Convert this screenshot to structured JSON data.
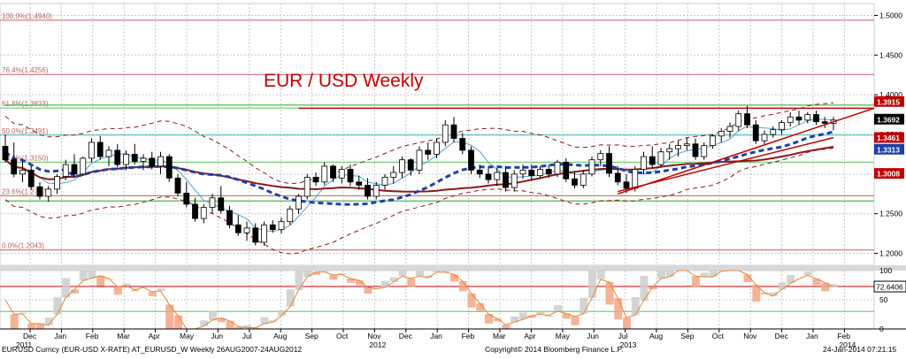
{
  "chart_data": {
    "type": "candlestick",
    "title": "EUR / USD Weekly",
    "footer": {
      "left": "EURUSD Curncy (EUR-USD X-RATE) AT_EURUSD_W  Weekly 26AUG2007-24AUG2012",
      "center": "Copyright© 2014 Bloomberg Finance L.P.",
      "right": "24-Jan-2014 07:21:15"
    },
    "y_axis": {
      "ticks": [
        "1.5000",
        "1.4500",
        "1.4000",
        "1.3500",
        "1.3000",
        "1.2500",
        "1.2000"
      ],
      "tick_values": [
        1.5,
        1.45,
        1.4,
        1.35,
        1.3,
        1.25,
        1.2
      ],
      "ylim": [
        1.185,
        1.515
      ]
    },
    "x_axis": {
      "months": [
        "Dec",
        "Jan",
        "Feb",
        "Mar",
        "Apr",
        "May",
        "Jun",
        "Jul",
        "Aug",
        "Sep",
        "Oct",
        "Nov",
        "Dec",
        "Jan",
        "Feb",
        "Mar",
        "Apr",
        "May",
        "Jun",
        "Jul",
        "Aug",
        "Sep",
        "Oct",
        "Nov",
        "Dec",
        "Jan",
        "Feb"
      ],
      "years": [
        "2011",
        "2012",
        "2013",
        "2014"
      ]
    },
    "fib_levels": [
      {
        "label": "100.0%(1.4940)",
        "value": 1.494
      },
      {
        "label": "76.4%(1.4256)",
        "value": 1.4256
      },
      {
        "label": "61.8%(1.3833)",
        "value": 1.3833
      },
      {
        "label": "50.0%(1.3491)",
        "value": 1.3491
      },
      {
        "label": "38.2%(1.3150)",
        "value": 1.315
      },
      {
        "label": "23.6%(1.2727)",
        "value": 1.2727
      },
      {
        "label": "0.0%(1.2043)",
        "value": 1.2043
      }
    ],
    "price_labels": [
      {
        "text": "1.3915",
        "value": 1.3915,
        "color": "#c00000"
      },
      {
        "text": "1.3692",
        "value": 1.3692,
        "color": "#000000"
      },
      {
        "text": "1.3461",
        "value": 1.3461,
        "color": "#c00000"
      },
      {
        "text": "1.3313",
        "value": 1.3313,
        "color": "#1f3fa8"
      },
      {
        "text": "1.3008",
        "value": 1.3008,
        "color": "#c00000"
      }
    ],
    "horizontal_lines": [
      {
        "value": 1.383,
        "color": "#c00000",
        "from_index": 34
      },
      {
        "value": 1.387,
        "color": "#5fbf5f",
        "from_index": 0
      },
      {
        "value": 1.266,
        "color": "#5fbf5f",
        "from_index": 0
      }
    ],
    "candles_ohlc": [
      [
        1.335,
        1.35,
        1.315,
        1.318
      ],
      [
        1.318,
        1.34,
        1.296,
        1.3
      ],
      [
        1.3,
        1.316,
        1.29,
        1.305
      ],
      [
        1.305,
        1.31,
        1.28,
        1.284
      ],
      [
        1.284,
        1.29,
        1.268,
        1.272
      ],
      [
        1.272,
        1.285,
        1.265,
        1.281
      ],
      [
        1.281,
        1.3,
        1.275,
        1.297
      ],
      [
        1.297,
        1.318,
        1.292,
        1.312
      ],
      [
        1.312,
        1.325,
        1.295,
        1.3
      ],
      [
        1.3,
        1.322,
        1.298,
        1.32
      ],
      [
        1.32,
        1.345,
        1.315,
        1.34
      ],
      [
        1.34,
        1.348,
        1.318,
        1.322
      ],
      [
        1.322,
        1.335,
        1.31,
        1.33
      ],
      [
        1.33,
        1.338,
        1.308,
        1.312
      ],
      [
        1.312,
        1.33,
        1.305,
        1.325
      ],
      [
        1.325,
        1.338,
        1.312,
        1.316
      ],
      [
        1.316,
        1.325,
        1.305,
        1.32
      ],
      [
        1.32,
        1.328,
        1.306,
        1.31
      ],
      [
        1.31,
        1.328,
        1.3,
        1.322
      ],
      [
        1.322,
        1.325,
        1.29,
        1.295
      ],
      [
        1.295,
        1.3,
        1.272,
        1.276
      ],
      [
        1.276,
        1.29,
        1.258,
        1.262
      ],
      [
        1.262,
        1.27,
        1.24,
        1.244
      ],
      [
        1.244,
        1.262,
        1.238,
        1.258
      ],
      [
        1.258,
        1.275,
        1.25,
        1.27
      ],
      [
        1.27,
        1.285,
        1.25,
        1.254
      ],
      [
        1.254,
        1.26,
        1.232,
        1.236
      ],
      [
        1.236,
        1.248,
        1.222,
        1.226
      ],
      [
        1.226,
        1.24,
        1.216,
        1.232
      ],
      [
        1.232,
        1.238,
        1.21,
        1.214
      ],
      [
        1.214,
        1.24,
        1.21,
        1.236
      ],
      [
        1.236,
        1.242,
        1.226,
        1.23
      ],
      [
        1.23,
        1.245,
        1.225,
        1.24
      ],
      [
        1.24,
        1.26,
        1.236,
        1.256
      ],
      [
        1.256,
        1.275,
        1.25,
        1.272
      ],
      [
        1.272,
        1.3,
        1.268,
        1.296
      ],
      [
        1.296,
        1.302,
        1.285,
        1.29
      ],
      [
        1.29,
        1.315,
        1.286,
        1.31
      ],
      [
        1.31,
        1.312,
        1.29,
        1.295
      ],
      [
        1.295,
        1.31,
        1.288,
        1.306
      ],
      [
        1.306,
        1.312,
        1.285,
        1.29
      ],
      [
        1.29,
        1.298,
        1.28,
        1.286
      ],
      [
        1.286,
        1.295,
        1.268,
        1.272
      ],
      [
        1.272,
        1.29,
        1.268,
        1.286
      ],
      [
        1.286,
        1.3,
        1.28,
        1.296
      ],
      [
        1.296,
        1.31,
        1.288,
        1.302
      ],
      [
        1.302,
        1.322,
        1.295,
        1.318
      ],
      [
        1.318,
        1.32,
        1.298,
        1.305
      ],
      [
        1.305,
        1.335,
        1.3,
        1.33
      ],
      [
        1.33,
        1.34,
        1.318,
        1.325
      ],
      [
        1.325,
        1.345,
        1.32,
        1.34
      ],
      [
        1.34,
        1.368,
        1.335,
        1.362
      ],
      [
        1.362,
        1.372,
        1.34,
        1.345
      ],
      [
        1.345,
        1.352,
        1.325,
        1.33
      ],
      [
        1.33,
        1.335,
        1.3,
        1.305
      ],
      [
        1.305,
        1.312,
        1.295,
        1.3
      ],
      [
        1.3,
        1.308,
        1.288,
        1.293
      ],
      [
        1.293,
        1.308,
        1.285,
        1.302
      ],
      [
        1.302,
        1.31,
        1.278,
        1.283
      ],
      [
        1.283,
        1.305,
        1.278,
        1.3
      ],
      [
        1.3,
        1.312,
        1.294,
        1.305
      ],
      [
        1.305,
        1.312,
        1.292,
        1.298
      ],
      [
        1.298,
        1.31,
        1.294,
        1.306
      ],
      [
        1.306,
        1.312,
        1.295,
        1.3
      ],
      [
        1.3,
        1.318,
        1.296,
        1.315
      ],
      [
        1.315,
        1.32,
        1.29,
        1.294
      ],
      [
        1.294,
        1.302,
        1.282,
        1.286
      ],
      [
        1.286,
        1.305,
        1.282,
        1.3
      ],
      [
        1.3,
        1.322,
        1.297,
        1.318
      ],
      [
        1.318,
        1.33,
        1.31,
        1.326
      ],
      [
        1.326,
        1.335,
        1.296,
        1.301
      ],
      [
        1.301,
        1.31,
        1.286,
        1.29
      ],
      [
        1.29,
        1.3,
        1.276,
        1.282
      ],
      [
        1.282,
        1.31,
        1.278,
        1.306
      ],
      [
        1.306,
        1.328,
        1.3,
        1.322
      ],
      [
        1.322,
        1.335,
        1.308,
        1.312
      ],
      [
        1.312,
        1.333,
        1.308,
        1.328
      ],
      [
        1.328,
        1.338,
        1.318,
        1.332
      ],
      [
        1.332,
        1.342,
        1.322,
        1.336
      ],
      [
        1.336,
        1.346,
        1.33,
        1.338
      ],
      [
        1.338,
        1.345,
        1.318,
        1.322
      ],
      [
        1.322,
        1.34,
        1.318,
        1.336
      ],
      [
        1.336,
        1.35,
        1.332,
        1.348
      ],
      [
        1.348,
        1.358,
        1.34,
        1.354
      ],
      [
        1.354,
        1.365,
        1.346,
        1.36
      ],
      [
        1.36,
        1.38,
        1.354,
        1.376
      ],
      [
        1.376,
        1.386,
        1.358,
        1.362
      ],
      [
        1.362,
        1.368,
        1.338,
        1.342
      ],
      [
        1.342,
        1.355,
        1.336,
        1.35
      ],
      [
        1.35,
        1.36,
        1.346,
        1.356
      ],
      [
        1.356,
        1.368,
        1.35,
        1.365
      ],
      [
        1.365,
        1.378,
        1.36,
        1.372
      ],
      [
        1.372,
        1.38,
        1.362,
        1.368
      ],
      [
        1.368,
        1.378,
        1.364,
        1.375
      ],
      [
        1.375,
        1.38,
        1.362,
        1.366
      ],
      [
        1.366,
        1.372,
        1.358,
        1.364
      ],
      [
        1.364,
        1.372,
        1.355,
        1.368
      ]
    ],
    "oscillator": {
      "ticks": [
        "100",
        "50",
        "0"
      ],
      "tick_values": [
        100,
        50,
        0
      ],
      "label": "72.6406",
      "label_value": 72.64
    }
  }
}
